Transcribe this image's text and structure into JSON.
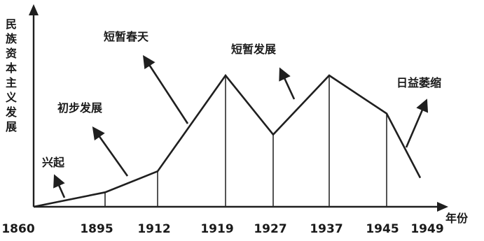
{
  "chart_data": {
    "type": "line",
    "ylabel": "民族资本主义发展",
    "xlabel": "年份",
    "x": [
      1860,
      1895,
      1912,
      1919,
      1927,
      1937,
      1945,
      1949
    ],
    "values": [
      0,
      11,
      27,
      100,
      55,
      100,
      71,
      22
    ],
    "ticks": [
      "1860",
      "1895",
      "1912",
      "1919",
      "1927",
      "1937",
      "1945",
      "1949"
    ],
    "annotations": [
      {
        "text": "兴起",
        "x": 1870
      },
      {
        "text": "初步发展",
        "x": 1906
      },
      {
        "text": "短暂春天",
        "x": 1916
      },
      {
        "text": "短暂发展",
        "x": 1932
      },
      {
        "text": "日益萎缩",
        "x": 1947
      }
    ]
  }
}
